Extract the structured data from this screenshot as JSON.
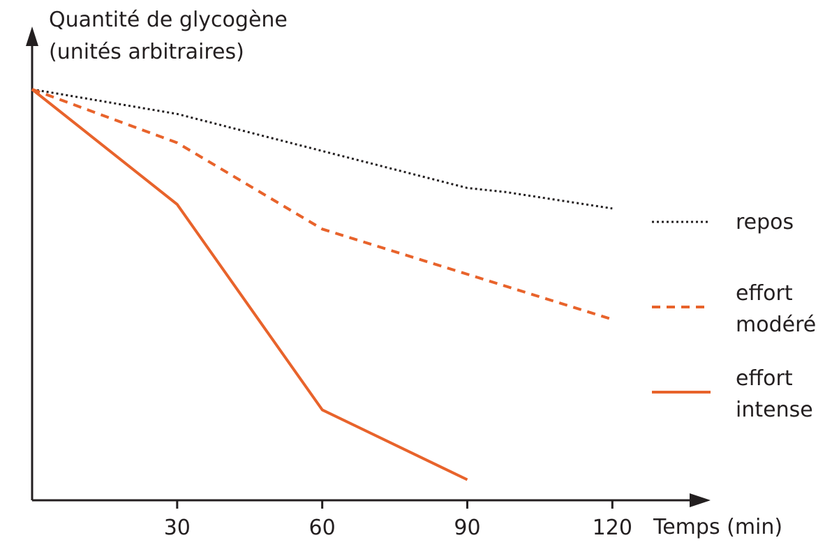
{
  "chart_data": {
    "type": "line",
    "title": "",
    "ylabel_lines": [
      "Quantité de glycogène",
      "(unités arbitraires)"
    ],
    "xlabel": "Temps (min)",
    "x_ticks": [
      30,
      60,
      90,
      120
    ],
    "xlim": [
      0,
      138
    ],
    "ylim": [
      0,
      100
    ],
    "y_ticks_shown": false,
    "grid": false,
    "legend_position": "right",
    "series": [
      {
        "name": "repos",
        "legend_lines": [
          "repos"
        ],
        "style": "dotted",
        "color": "#231f20",
        "x": [
          0,
          30,
          60,
          90,
          98,
          120
        ],
        "y": [
          100,
          94,
          85,
          76,
          75,
          71
        ]
      },
      {
        "name": "effort modéré",
        "legend_lines": [
          "effort",
          "modéré"
        ],
        "style": "dashed",
        "color": "#e8632b",
        "x": [
          0,
          30,
          60,
          90,
          120
        ],
        "y": [
          100,
          87,
          66,
          55,
          44
        ]
      },
      {
        "name": "effort intense",
        "legend_lines": [
          "effort",
          "intense"
        ],
        "style": "solid",
        "color": "#e8632b",
        "x": [
          0,
          30,
          60,
          90
        ],
        "y": [
          100,
          72,
          22,
          5
        ]
      }
    ]
  }
}
